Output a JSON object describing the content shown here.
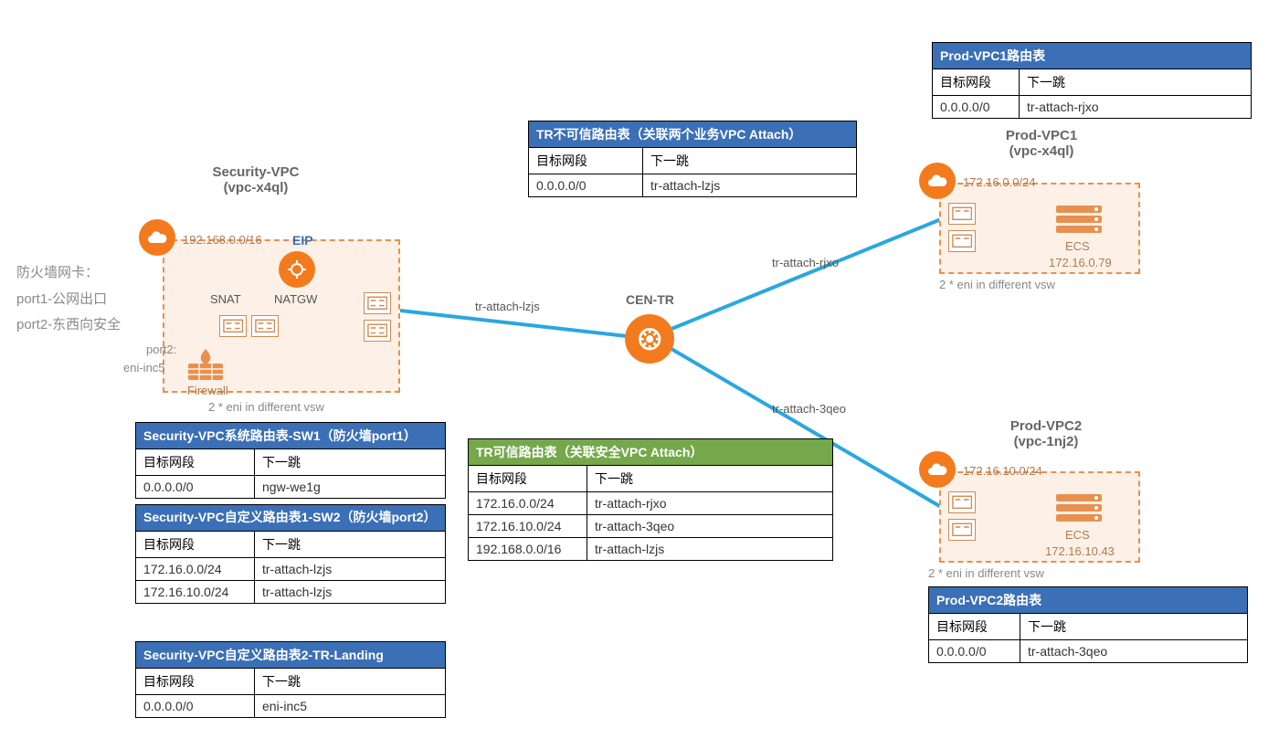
{
  "colors": {
    "orange": "#f37b1d",
    "vpc_border": "#e8904f",
    "vpc_fill": "#fdf1e7",
    "line": "#2aa7df",
    "hdr_blue": "#3b6fb6",
    "hdr_green": "#74a84a",
    "label": "#595959"
  },
  "security_vpc": {
    "title": "Security-VPC",
    "vpc_id": "(vpc-x4ql)",
    "cidr": "192.168.0.0/16",
    "eip_label": "EIP",
    "snat_label": "SNAT",
    "natgw_label": "NATGW",
    "port2_label": "port2:",
    "port2_eni": "eni-inc5",
    "firewall_label": "Firewall",
    "footnote": "2 * eni in different vsw"
  },
  "sidenote": {
    "line1": "防火墙网卡：",
    "line2": "port1-公网出口",
    "line3": "port2-东西向安全"
  },
  "cen_tr_label": "CEN-TR",
  "attach_labels": {
    "lzjs": "tr-attach-lzjs",
    "rjxo": "tr-attach-rjxo",
    "qeo": "tr-attach-3qeo"
  },
  "prod_vpc1": {
    "title": "Prod-VPC1",
    "vpc_id": "(vpc-x4ql)",
    "cidr": "172.16.0.0/24",
    "ecs_label": "ECS",
    "ecs_ip": "172.16.0.79",
    "footnote": "2 * eni in different vsw"
  },
  "prod_vpc2": {
    "title": "Prod-VPC2",
    "vpc_id": "(vpc-1nj2)",
    "cidr": "172.16.10.0/24",
    "ecs_label": "ECS",
    "ecs_ip": "172.16.10.43",
    "footnote": "2 * eni in different vsw"
  },
  "tables": {
    "prod_vpc1_rt": {
      "title": "Prod-VPC1路由表",
      "col1": "目标网段",
      "col2": "下一跳",
      "rows": [
        [
          "0.0.0.0/0",
          "tr-attach-rjxo"
        ]
      ]
    },
    "tr_untrusted": {
      "title": "TR不可信路由表（关联两个业务VPC Attach）",
      "col1": "目标网段",
      "col2": "下一跳",
      "rows": [
        [
          "0.0.0.0/0",
          "tr-attach-lzjs"
        ]
      ]
    },
    "sec_sw1": {
      "title": "Security-VPC系统路由表-SW1（防火墙port1）",
      "col1": "目标网段",
      "col2": "下一跳",
      "rows": [
        [
          "0.0.0.0/0",
          "ngw-we1g"
        ]
      ]
    },
    "sec_sw2": {
      "title": "Security-VPC自定义路由表1-SW2（防火墙port2）",
      "col1": "目标网段",
      "col2": "下一跳",
      "rows": [
        [
          "172.16.0.0/24",
          "tr-attach-lzjs"
        ],
        [
          "172.16.10.0/24",
          "tr-attach-lzjs"
        ]
      ]
    },
    "sec_tr_landing": {
      "title": "Security-VPC自定义路由表2-TR-Landing",
      "col1": "目标网段",
      "col2": "下一跳",
      "rows": [
        [
          "0.0.0.0/0",
          "eni-inc5"
        ]
      ]
    },
    "tr_trusted": {
      "title": "TR可信路由表（关联安全VPC Attach）",
      "col1": "目标网段",
      "col2": "下一跳",
      "rows": [
        [
          "172.16.0.0/24",
          "tr-attach-rjxo"
        ],
        [
          "172.16.10.0/24",
          "tr-attach-3qeo"
        ],
        [
          "192.168.0.0/16",
          "tr-attach-lzjs"
        ]
      ]
    },
    "prod_vpc2_rt": {
      "title": "Prod-VPC2路由表",
      "col1": "目标网段",
      "col2": "下一跳",
      "rows": [
        [
          "0.0.0.0/0",
          "tr-attach-3qeo"
        ]
      ]
    }
  }
}
